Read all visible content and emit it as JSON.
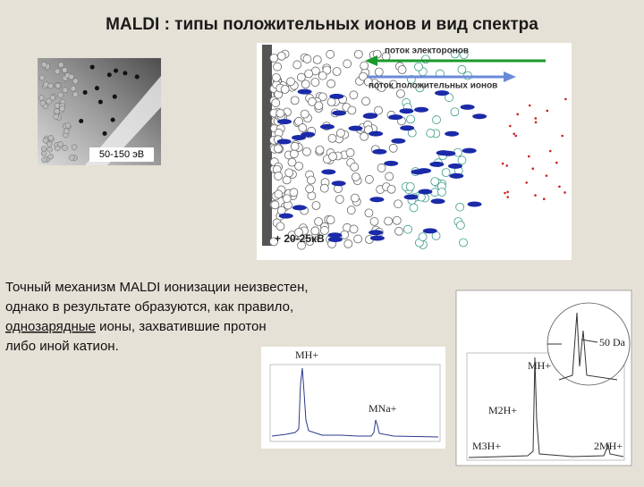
{
  "title": "MALDI : типы положительных ионов и вид спектра",
  "figure_left": {
    "energy_label": "50-150 эВ"
  },
  "figure_main": {
    "electron_flow": "поток электоронов",
    "ion_flow": "поток положительных ионов",
    "voltage": "+ 20-25кВ"
  },
  "paragraph": {
    "lines": [
      "Точный механизм MALDI ионизации неизвестен,",
      "однако в результате образуются, как правило,",
      "ионы, захватившие протон",
      "либо иной катион."
    ],
    "underlined": "однозарядные"
  },
  "spectrum_1": {
    "labels": [
      "MH+",
      "MNa+"
    ]
  },
  "spectrum_2": {
    "labels": [
      "50 Da",
      "MH+",
      "M2H+",
      "M3H+",
      "2MH+"
    ]
  }
}
